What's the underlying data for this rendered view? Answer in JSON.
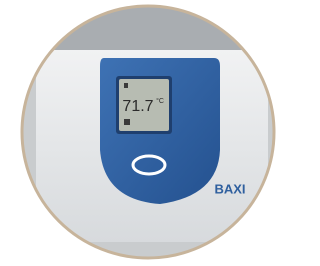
{
  "display": {
    "reading": "71.7",
    "unit": "°C"
  },
  "brand": "BAXI"
}
